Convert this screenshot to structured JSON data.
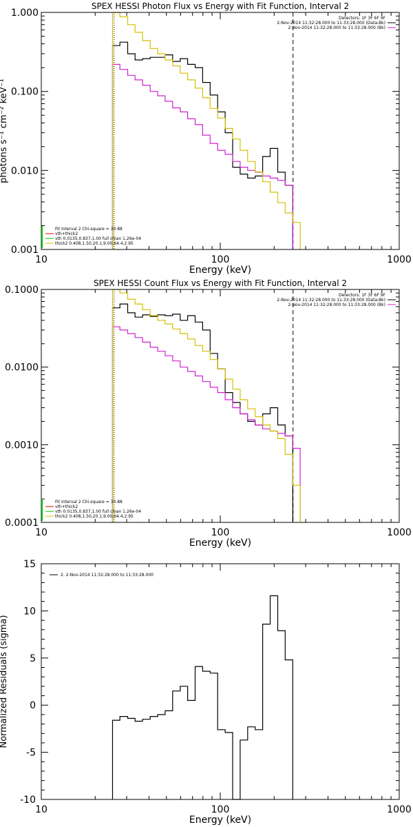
{
  "colors": {
    "black": "#000000",
    "magenta": "#d020d0",
    "yellow": "#d4c000",
    "green": "#00c000",
    "red": "#e00000",
    "axis": "#000000"
  },
  "chart_data": [
    {
      "type": "line",
      "title": "SPEX HESSI Photon Flux vs Energy with Fit Function, Interval 2",
      "xlabel": "Energy (keV)",
      "ylabel": "photons s⁻¹ cm⁻² keV⁻¹",
      "xscale": "log",
      "yscale": "log",
      "xlim": [
        10,
        1000
      ],
      "ylim": [
        0.001,
        1.0
      ],
      "x_ticks": [
        "10",
        "100",
        "1000"
      ],
      "y_ticks": [
        "0.001",
        "0.010",
        "0.100",
        "1.000"
      ],
      "legend_right": [
        "Detectors: 1F 3F 6F 9F",
        "2-Nov-2014 11:32:28.000 to 11:33:28.000 (Data-Bk)",
        "2-Nov-2014 11:32:28.000 to 11:33:28.000 (Bk)"
      ],
      "legend_left": [
        "Fit Interval 2   Chi-square = 30.88",
        "vth+thick2",
        "vth 0.0135,0.837,1.00  full chian 1.26e-04",
        "thick2 0.408,1.50,20.1,9.00,64.4,2.95"
      ],
      "edges": [
        25,
        27.5,
        30.4,
        33.4,
        36.8,
        40.6,
        44.7,
        49.2,
        54.2,
        59.7,
        65.7,
        72.4,
        79.7,
        87.8,
        96.7,
        106.5,
        117.3,
        129.2,
        142.3,
        156.7,
        172.6,
        190.1,
        209.4,
        230.6,
        254,
        279.7
      ],
      "series": [
        {
          "name": "Data-Bk",
          "color": "black",
          "values": [
            0.38,
            0.42,
            0.3,
            0.25,
            0.26,
            0.27,
            0.27,
            0.29,
            0.24,
            0.26,
            0.22,
            0.2,
            0.13,
            0.09,
            0.055,
            0.03,
            0.011,
            0.009,
            0.008,
            0.0085,
            0.015,
            0.019,
            0.0095,
            0.0065
          ]
        },
        {
          "name": "Bk",
          "color": "magenta",
          "values": [
            0.22,
            0.19,
            0.16,
            0.14,
            0.12,
            0.1,
            0.088,
            0.075,
            0.062,
            0.055,
            0.045,
            0.038,
            0.028,
            0.022,
            0.018,
            0.016,
            0.013,
            0.011,
            0.01,
            0.0095,
            0.0085,
            0.008,
            0.0075,
            0.0065
          ]
        },
        {
          "name": "vth+thick2",
          "color": "yellow",
          "values": [
            1.0,
            0.88,
            0.7,
            0.56,
            0.44,
            0.35,
            0.3,
            0.25,
            0.21,
            0.17,
            0.14,
            0.11,
            0.083,
            0.061,
            0.046,
            0.034,
            0.025,
            0.018,
            0.013,
            0.0096,
            0.0072,
            0.0053,
            0.0039,
            0.0029,
            0.0022
          ]
        }
      ],
      "vlines": [
        {
          "x": 25.5,
          "style": "dotted"
        },
        {
          "x": 255,
          "style": "dashed"
        }
      ]
    },
    {
      "type": "line",
      "title": "SPEX HESSI Count Flux vs Energy with Fit Function, Interval 2",
      "xlabel": "Energy (keV)",
      "xscale": "log",
      "yscale": "log",
      "xlim": [
        10,
        1000
      ],
      "ylim": [
        0.0001,
        0.1
      ],
      "x_ticks": [
        "10",
        "100",
        "1000"
      ],
      "y_ticks": [
        "0.0001",
        "0.0010",
        "0.0100",
        "0.1000"
      ],
      "legend_right": [
        "Detectors: 1F 3F 6F 9F",
        "2-Nov-2014 11:32:28.000 to 11:33:28.000 (Data-Bk)",
        "2-Nov-2014 11:32:28.000 to 11:33:28.000 (Bk)"
      ],
      "legend_left": [
        "Fit Interval 2   Chi-square = 30.88",
        "vth+thick2",
        "vth 0.0135,0.837,1.00  full chian 1.26e-04",
        "thick2 0.408,1.50,20.1,9.00,64.4,2.95"
      ],
      "edges": [
        25,
        27.5,
        30.4,
        33.4,
        36.8,
        40.6,
        44.7,
        49.2,
        54.2,
        59.7,
        65.7,
        72.4,
        79.7,
        87.8,
        96.7,
        106.5,
        117.3,
        129.2,
        142.3,
        156.7,
        172.6,
        190.1,
        209.4,
        230.6,
        254,
        279.7
      ],
      "series": [
        {
          "name": "Data-Bk",
          "color": "black",
          "values": [
            0.058,
            0.065,
            0.05,
            0.044,
            0.047,
            0.045,
            0.047,
            0.046,
            0.048,
            0.04,
            0.046,
            0.038,
            0.03,
            0.015,
            0.0095,
            0.0047,
            0.0035,
            0.0025,
            0.002,
            0.0018,
            0.0025,
            0.003,
            0.0018,
            0.0013
          ]
        },
        {
          "name": "Bk",
          "color": "magenta",
          "values": [
            0.033,
            0.03,
            0.027,
            0.024,
            0.021,
            0.018,
            0.016,
            0.014,
            0.012,
            0.01,
            0.0088,
            0.0077,
            0.0065,
            0.0055,
            0.0047,
            0.0038,
            0.003,
            0.0025,
            0.0021,
            0.0018,
            0.0016,
            0.0015,
            0.0014,
            0.0013,
            0.0009
          ]
        },
        {
          "name": "vth+thick2",
          "color": "yellow",
          "values": [
            0.1,
            0.09,
            0.075,
            0.065,
            0.055,
            0.046,
            0.04,
            0.036,
            0.031,
            0.027,
            0.023,
            0.019,
            0.016,
            0.0125,
            0.0095,
            0.007,
            0.0052,
            0.0038,
            0.0029,
            0.0023,
            0.0018,
            0.0015,
            0.0012,
            0.00075,
            0.0003
          ]
        }
      ],
      "vlines": [
        {
          "x": 25.5,
          "style": "dotted"
        },
        {
          "x": 255,
          "style": "dashed"
        }
      ]
    },
    {
      "type": "line",
      "title": "",
      "xlabel": "Energy (keV)",
      "ylabel": "Normalized Residuals (sigma)",
      "xscale": "log",
      "yscale": "linear",
      "xlim": [
        10,
        1000
      ],
      "ylim": [
        -10,
        15
      ],
      "x_ticks": [
        "10",
        "100",
        "1000"
      ],
      "y_ticks": [
        "-10",
        "-5",
        "0",
        "5",
        "10",
        "15"
      ],
      "legend": "2.  2-Nov-2014 11:32:28.000 to 11:33:28.000",
      "edges": [
        25,
        27.5,
        30.4,
        33.4,
        36.8,
        40.6,
        44.7,
        49.2,
        54.2,
        59.7,
        65.7,
        72.4,
        79.7,
        87.8,
        96.7,
        106.5,
        117.3,
        129.2,
        142.3,
        156.7,
        172.6,
        190.1,
        209.4,
        230.6,
        254
      ],
      "series": [
        {
          "name": "2-Nov-2014 11:32:28.000 to 11:33:28.000",
          "color": "black",
          "values": [
            -1.6,
            -1.2,
            -1.4,
            -1.7,
            -1.5,
            -1.2,
            -1.0,
            -0.6,
            1.5,
            2.0,
            0.5,
            4.1,
            3.6,
            3.4,
            -2.6,
            -2.9,
            -10.0,
            -3.7,
            -2.3,
            -2.6,
            8.6,
            11.6,
            7.9,
            4.8
          ]
        }
      ]
    }
  ]
}
